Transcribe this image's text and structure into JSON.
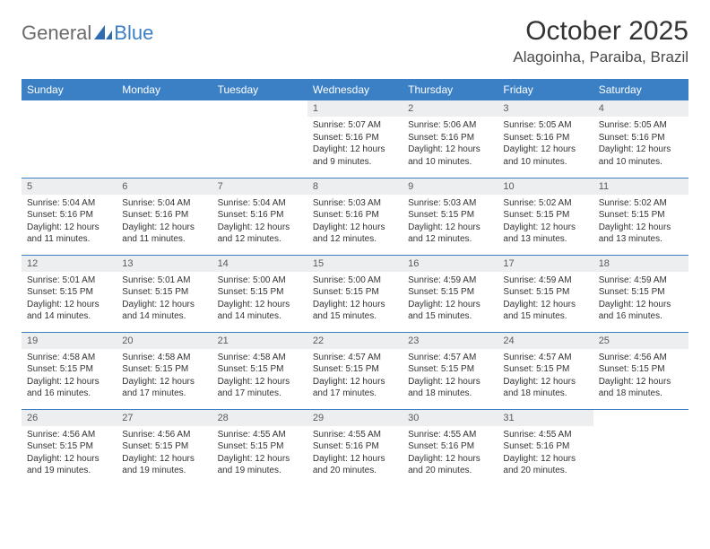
{
  "logo": {
    "general": "General",
    "blue": "Blue"
  },
  "title": "October 2025",
  "location": "Alagoinha, Paraiba, Brazil",
  "colors": {
    "header_bg": "#3b7fc4",
    "header_fg": "#ffffff",
    "daynum_bg": "#eceef0",
    "border": "#3b7fc4",
    "logo_gray": "#6b6b6b",
    "logo_blue": "#3b7fc4"
  },
  "weekdays": [
    "Sunday",
    "Monday",
    "Tuesday",
    "Wednesday",
    "Thursday",
    "Friday",
    "Saturday"
  ],
  "weeks": [
    [
      null,
      null,
      null,
      {
        "n": "1",
        "sr": "5:07 AM",
        "ss": "5:16 PM",
        "dl": "12 hours and 9 minutes."
      },
      {
        "n": "2",
        "sr": "5:06 AM",
        "ss": "5:16 PM",
        "dl": "12 hours and 10 minutes."
      },
      {
        "n": "3",
        "sr": "5:05 AM",
        "ss": "5:16 PM",
        "dl": "12 hours and 10 minutes."
      },
      {
        "n": "4",
        "sr": "5:05 AM",
        "ss": "5:16 PM",
        "dl": "12 hours and 10 minutes."
      }
    ],
    [
      {
        "n": "5",
        "sr": "5:04 AM",
        "ss": "5:16 PM",
        "dl": "12 hours and 11 minutes."
      },
      {
        "n": "6",
        "sr": "5:04 AM",
        "ss": "5:16 PM",
        "dl": "12 hours and 11 minutes."
      },
      {
        "n": "7",
        "sr": "5:04 AM",
        "ss": "5:16 PM",
        "dl": "12 hours and 12 minutes."
      },
      {
        "n": "8",
        "sr": "5:03 AM",
        "ss": "5:16 PM",
        "dl": "12 hours and 12 minutes."
      },
      {
        "n": "9",
        "sr": "5:03 AM",
        "ss": "5:15 PM",
        "dl": "12 hours and 12 minutes."
      },
      {
        "n": "10",
        "sr": "5:02 AM",
        "ss": "5:15 PM",
        "dl": "12 hours and 13 minutes."
      },
      {
        "n": "11",
        "sr": "5:02 AM",
        "ss": "5:15 PM",
        "dl": "12 hours and 13 minutes."
      }
    ],
    [
      {
        "n": "12",
        "sr": "5:01 AM",
        "ss": "5:15 PM",
        "dl": "12 hours and 14 minutes."
      },
      {
        "n": "13",
        "sr": "5:01 AM",
        "ss": "5:15 PM",
        "dl": "12 hours and 14 minutes."
      },
      {
        "n": "14",
        "sr": "5:00 AM",
        "ss": "5:15 PM",
        "dl": "12 hours and 14 minutes."
      },
      {
        "n": "15",
        "sr": "5:00 AM",
        "ss": "5:15 PM",
        "dl": "12 hours and 15 minutes."
      },
      {
        "n": "16",
        "sr": "4:59 AM",
        "ss": "5:15 PM",
        "dl": "12 hours and 15 minutes."
      },
      {
        "n": "17",
        "sr": "4:59 AM",
        "ss": "5:15 PM",
        "dl": "12 hours and 15 minutes."
      },
      {
        "n": "18",
        "sr": "4:59 AM",
        "ss": "5:15 PM",
        "dl": "12 hours and 16 minutes."
      }
    ],
    [
      {
        "n": "19",
        "sr": "4:58 AM",
        "ss": "5:15 PM",
        "dl": "12 hours and 16 minutes."
      },
      {
        "n": "20",
        "sr": "4:58 AM",
        "ss": "5:15 PM",
        "dl": "12 hours and 17 minutes."
      },
      {
        "n": "21",
        "sr": "4:58 AM",
        "ss": "5:15 PM",
        "dl": "12 hours and 17 minutes."
      },
      {
        "n": "22",
        "sr": "4:57 AM",
        "ss": "5:15 PM",
        "dl": "12 hours and 17 minutes."
      },
      {
        "n": "23",
        "sr": "4:57 AM",
        "ss": "5:15 PM",
        "dl": "12 hours and 18 minutes."
      },
      {
        "n": "24",
        "sr": "4:57 AM",
        "ss": "5:15 PM",
        "dl": "12 hours and 18 minutes."
      },
      {
        "n": "25",
        "sr": "4:56 AM",
        "ss": "5:15 PM",
        "dl": "12 hours and 18 minutes."
      }
    ],
    [
      {
        "n": "26",
        "sr": "4:56 AM",
        "ss": "5:15 PM",
        "dl": "12 hours and 19 minutes."
      },
      {
        "n": "27",
        "sr": "4:56 AM",
        "ss": "5:15 PM",
        "dl": "12 hours and 19 minutes."
      },
      {
        "n": "28",
        "sr": "4:55 AM",
        "ss": "5:15 PM",
        "dl": "12 hours and 19 minutes."
      },
      {
        "n": "29",
        "sr": "4:55 AM",
        "ss": "5:16 PM",
        "dl": "12 hours and 20 minutes."
      },
      {
        "n": "30",
        "sr": "4:55 AM",
        "ss": "5:16 PM",
        "dl": "12 hours and 20 minutes."
      },
      {
        "n": "31",
        "sr": "4:55 AM",
        "ss": "5:16 PM",
        "dl": "12 hours and 20 minutes."
      },
      null
    ]
  ],
  "labels": {
    "sunrise": "Sunrise:",
    "sunset": "Sunset:",
    "daylight": "Daylight:"
  }
}
